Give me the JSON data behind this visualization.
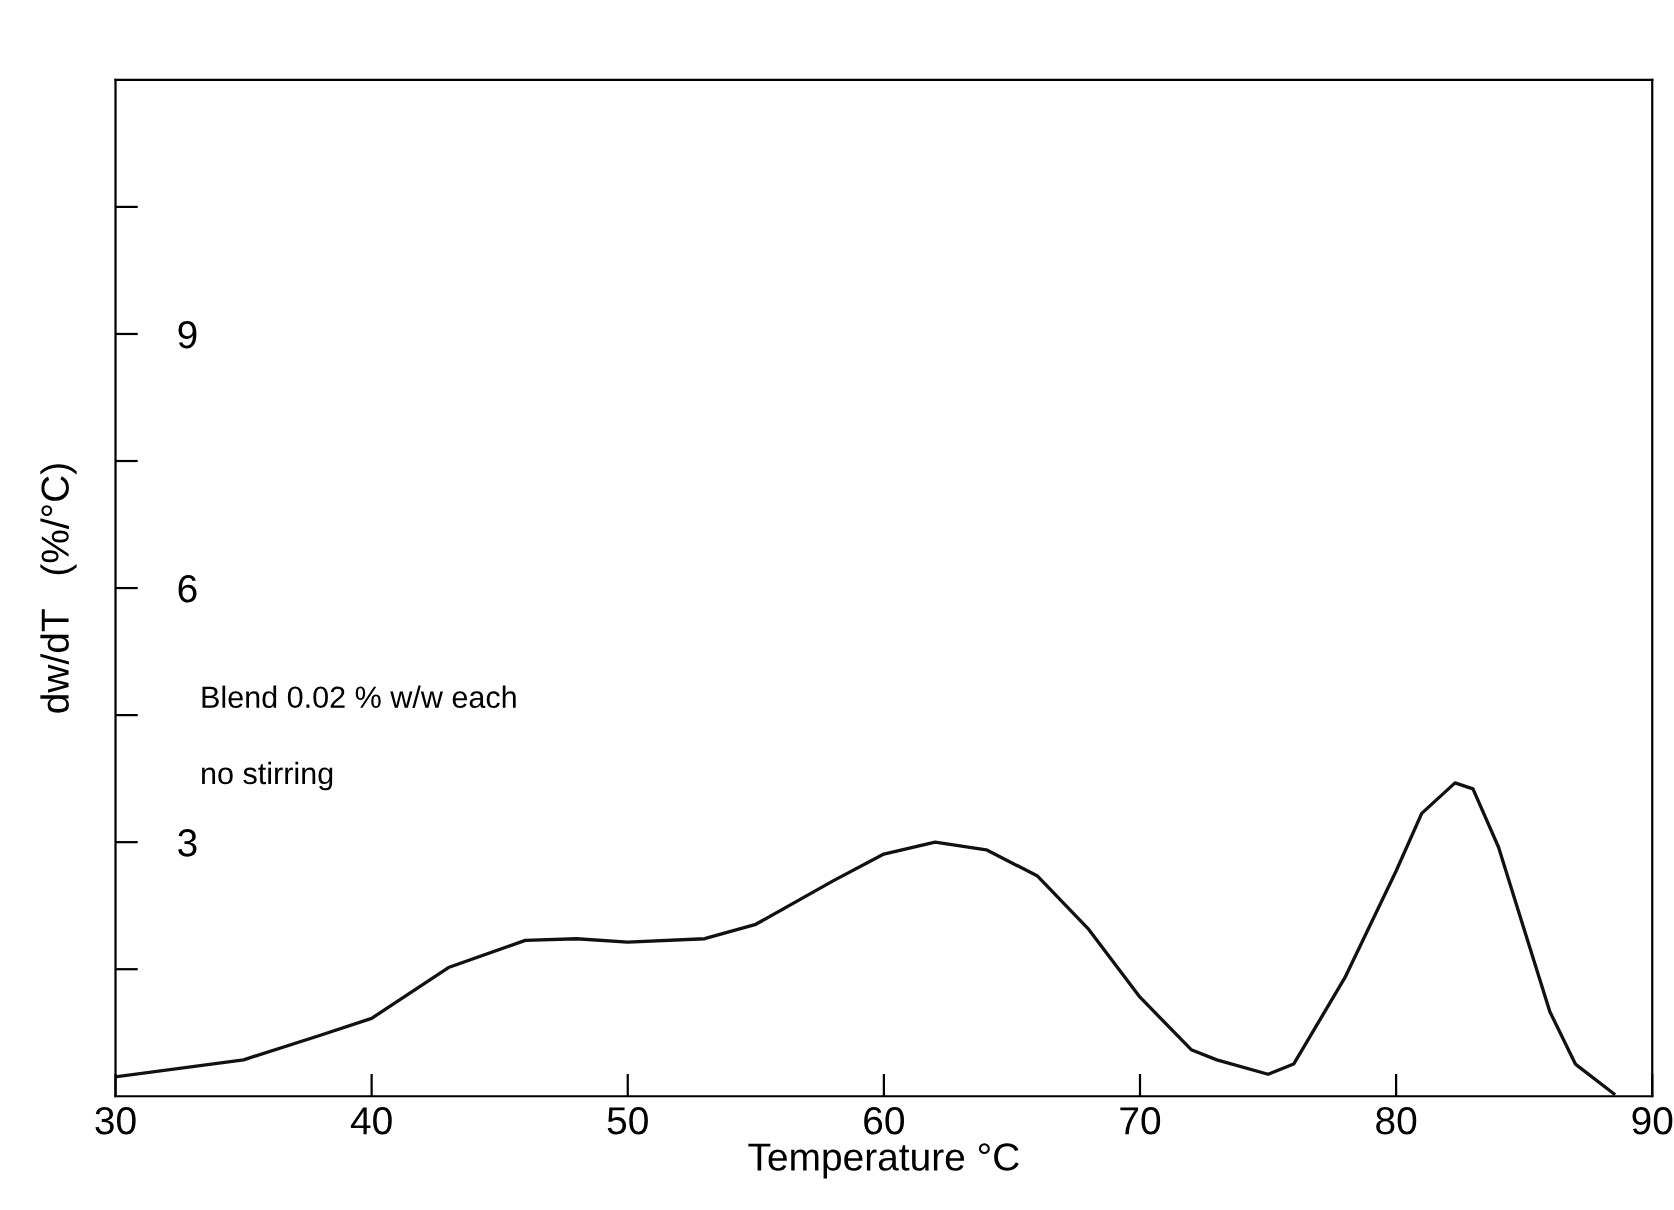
{
  "chart_data": {
    "type": "line",
    "xlabel": "Temperature °C",
    "ylabel": "dw/dT   (%/°C)",
    "annotations": [
      "Blend 0.02 % w/w each",
      "no stirring"
    ],
    "x": [
      30,
      35,
      38,
      40,
      43,
      46,
      48,
      50,
      53,
      55,
      58,
      60,
      62,
      64,
      66,
      68,
      70,
      72,
      73,
      75,
      76,
      78,
      80,
      81,
      82.3,
      83,
      84,
      85,
      86,
      87,
      88.5
    ],
    "series": [
      {
        "color": "#111111",
        "values": [
          0.23,
          0.43,
          0.72,
          0.92,
          1.52,
          1.84,
          1.86,
          1.82,
          1.86,
          2.03,
          2.54,
          2.86,
          3.0,
          2.91,
          2.6,
          1.97,
          1.17,
          0.55,
          0.43,
          0.26,
          0.38,
          1.4,
          2.66,
          3.34,
          3.7,
          3.63,
          2.94,
          1.97,
          1.0,
          0.38,
          0.03
        ]
      }
    ],
    "xlim": [
      30,
      90
    ],
    "xticks": [
      30,
      40,
      50,
      60,
      70,
      80,
      90
    ],
    "ylim": [
      0,
      12
    ],
    "yticks": [
      {
        "value": 1.5,
        "label": null
      },
      3,
      {
        "value": 4.5,
        "label": null
      },
      6,
      {
        "value": 7.5,
        "label": null
      },
      9,
      {
        "value": 10.5,
        "label": null
      }
    ],
    "grid": false,
    "legend": false,
    "marker": "none",
    "line_style": "solid"
  }
}
